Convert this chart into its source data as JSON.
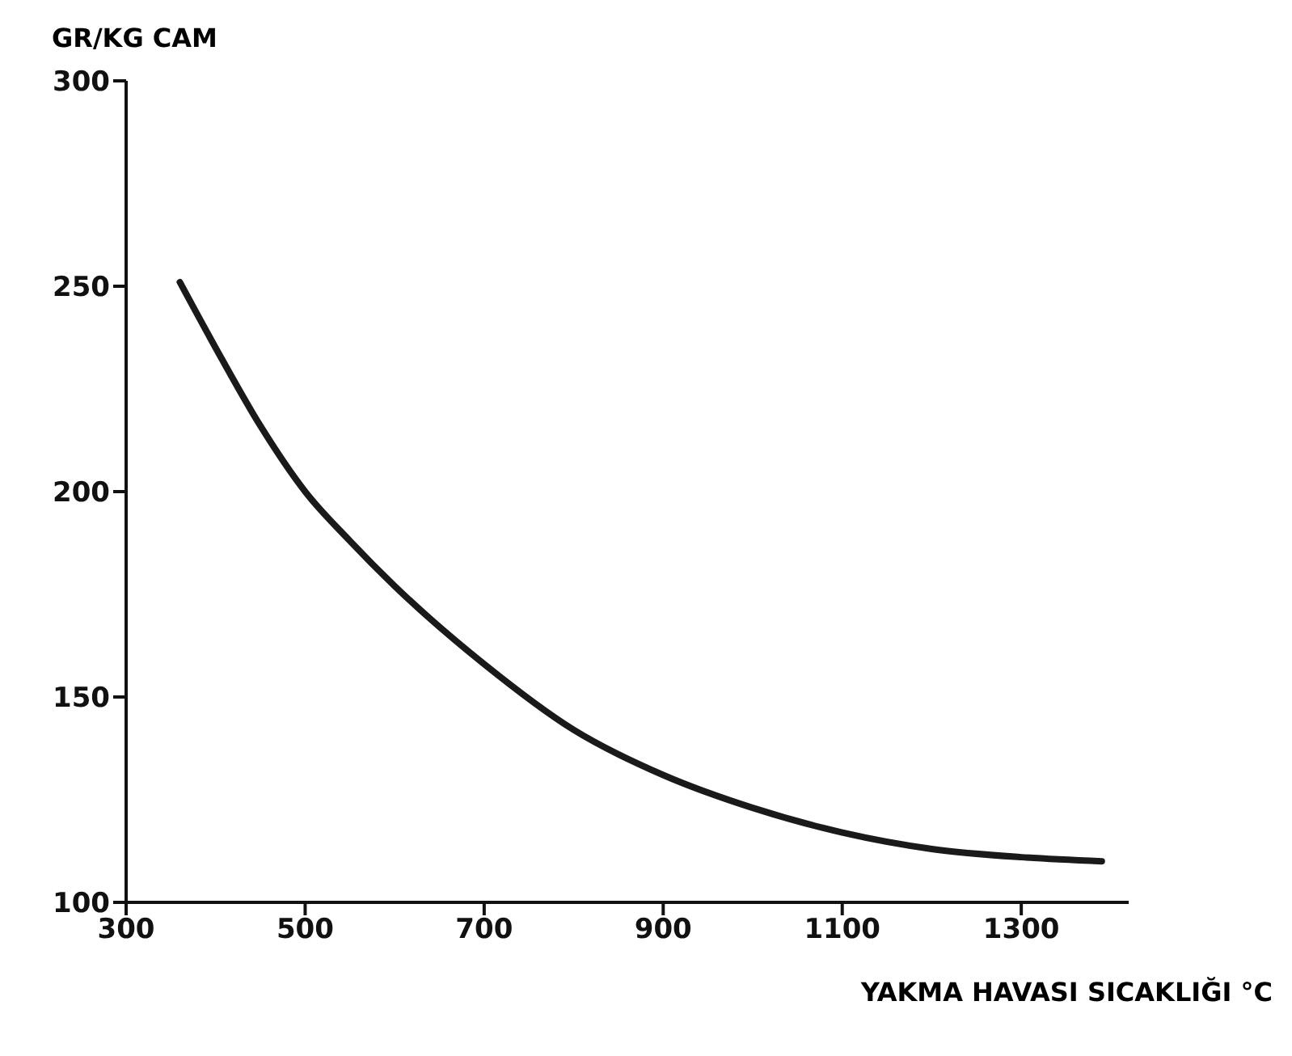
{
  "chart_data": {
    "type": "line",
    "xlabel": "YAKMA HAVASI SICAKLIĞI °C",
    "ylabel": "GR/KG CAM",
    "xlim": [
      300,
      1420
    ],
    "ylim": [
      100,
      300
    ],
    "xticks": [
      300,
      500,
      700,
      900,
      1100,
      1300
    ],
    "yticks": [
      100,
      150,
      200,
      250,
      300
    ],
    "grid": false,
    "marker": "none",
    "line_style": "solid",
    "series": [
      {
        "color": "#1a1a1a",
        "x": [
          360,
          400,
          450,
          500,
          550,
          600,
          700,
          800,
          900,
          1000,
          1100,
          1200,
          1300,
          1390
        ],
        "values": [
          251,
          235,
          216,
          200,
          188,
          177,
          158,
          142,
          131,
          123,
          117,
          113,
          111,
          110
        ]
      }
    ]
  }
}
